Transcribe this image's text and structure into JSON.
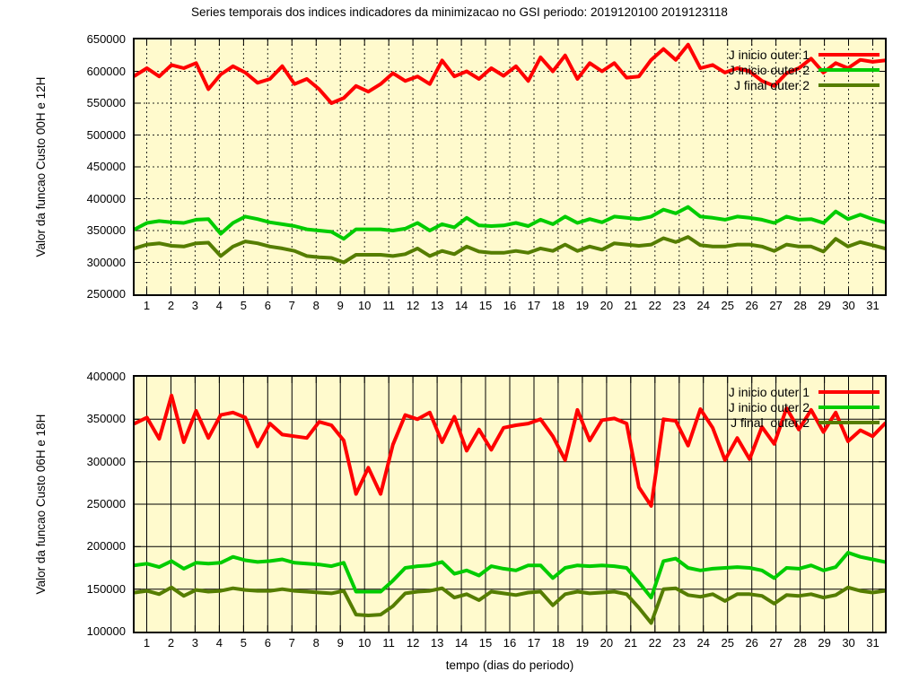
{
  "title": "Series temporais dos indices indicadores da minimizacao no GSI periodo: 2019120100 2019123118",
  "chart_data": [
    {
      "name": "custo-00h-12h",
      "type": "line",
      "ylabel": "Valor da funcao Custo 00H e 12H",
      "grid": "dotted",
      "plot_bg": "#FFFACD",
      "legend_position": "top-right",
      "xlim": [
        0.5,
        31.5
      ],
      "ylim": [
        250000,
        650000
      ],
      "ytick_step": 50000,
      "xticks": [
        1,
        2,
        3,
        4,
        5,
        6,
        7,
        8,
        9,
        10,
        11,
        12,
        13,
        14,
        15,
        16,
        17,
        18,
        19,
        20,
        21,
        22,
        23,
        24,
        25,
        26,
        27,
        28,
        29,
        30,
        31
      ],
      "series": [
        {
          "name": "J inicio outer 1",
          "color": "#ff0000",
          "values": [
            593000,
            605000,
            592000,
            610000,
            605000,
            613000,
            572000,
            595000,
            608000,
            598000,
            582000,
            588000,
            608000,
            580000,
            588000,
            572000,
            550000,
            558000,
            577000,
            568000,
            580000,
            597000,
            585000,
            592000,
            580000,
            617000,
            592000,
            600000,
            588000,
            605000,
            593000,
            608000,
            585000,
            622000,
            600000,
            625000,
            588000,
            613000,
            600000,
            613000,
            590000,
            592000,
            618000,
            635000,
            618000,
            642000,
            605000,
            610000,
            598000,
            605000,
            600000,
            585000,
            577000,
            597000,
            605000,
            620000,
            598000,
            613000,
            605000,
            618000,
            615000,
            617000
          ]
        },
        {
          "name": "J inicio outer 2",
          "color": "#00cc00",
          "values": [
            352000,
            362000,
            365000,
            363000,
            362000,
            367000,
            368000,
            345000,
            362000,
            372000,
            368000,
            363000,
            360000,
            357000,
            352000,
            350000,
            348000,
            337000,
            352000,
            352000,
            352000,
            350000,
            353000,
            362000,
            350000,
            360000,
            355000,
            370000,
            358000,
            357000,
            358000,
            362000,
            357000,
            367000,
            360000,
            372000,
            362000,
            368000,
            363000,
            372000,
            370000,
            368000,
            372000,
            383000,
            377000,
            387000,
            372000,
            370000,
            367000,
            372000,
            370000,
            367000,
            362000,
            372000,
            367000,
            368000,
            362000,
            380000,
            368000,
            375000,
            368000,
            363000
          ]
        },
        {
          "name": "J final outer 2",
          "color": "#557d00",
          "values": [
            322000,
            328000,
            330000,
            326000,
            325000,
            330000,
            331000,
            310000,
            325000,
            333000,
            330000,
            325000,
            322000,
            318000,
            310000,
            308000,
            307000,
            300000,
            312000,
            312000,
            312000,
            310000,
            313000,
            322000,
            310000,
            318000,
            313000,
            325000,
            317000,
            315000,
            315000,
            318000,
            315000,
            322000,
            318000,
            328000,
            318000,
            325000,
            320000,
            330000,
            328000,
            326000,
            328000,
            338000,
            332000,
            340000,
            327000,
            325000,
            325000,
            328000,
            328000,
            325000,
            318000,
            328000,
            325000,
            325000,
            317000,
            337000,
            325000,
            332000,
            327000,
            322000
          ]
        }
      ]
    },
    {
      "name": "custo-06h-18h",
      "type": "line",
      "ylabel": "Valor da funcao Custo 06H e 18H",
      "xlabel": "tempo (dias do periodo)",
      "grid": "solid",
      "plot_bg": "#FFFACD",
      "legend_position": "top-right",
      "xlim": [
        0.5,
        31.5
      ],
      "ylim": [
        100000,
        400000
      ],
      "ytick_step": 50000,
      "xticks": [
        1,
        2,
        3,
        4,
        5,
        6,
        7,
        8,
        9,
        10,
        11,
        12,
        13,
        14,
        15,
        16,
        17,
        18,
        19,
        20,
        21,
        22,
        23,
        24,
        25,
        26,
        27,
        28,
        29,
        30,
        31
      ],
      "series": [
        {
          "name": "J inicio outer 1",
          "color": "#ff0000",
          "values": [
            345000,
            352000,
            327000,
            378000,
            323000,
            360000,
            328000,
            355000,
            358000,
            352000,
            318000,
            345000,
            332000,
            330000,
            328000,
            347000,
            343000,
            325000,
            262000,
            293000,
            262000,
            320000,
            355000,
            350000,
            358000,
            323000,
            353000,
            313000,
            338000,
            314000,
            340000,
            343000,
            345000,
            350000,
            330000,
            302000,
            361000,
            325000,
            349000,
            351000,
            345000,
            270000,
            248000,
            350000,
            348000,
            319000,
            362000,
            340000,
            302000,
            328000,
            303000,
            341000,
            321000,
            363000,
            338000,
            361000,
            335000,
            358000,
            324000,
            337000,
            330000,
            345000
          ]
        },
        {
          "name": "J inicio outer 2",
          "color": "#00cc00",
          "values": [
            178000,
            180000,
            176000,
            183000,
            174000,
            181000,
            180000,
            181000,
            188000,
            184000,
            182000,
            183000,
            185000,
            181000,
            180000,
            179000,
            177000,
            181000,
            147000,
            147000,
            147000,
            160000,
            175000,
            177000,
            178000,
            182000,
            168000,
            172000,
            166000,
            177000,
            174000,
            172000,
            178000,
            178000,
            163000,
            175000,
            178000,
            177000,
            178000,
            177000,
            175000,
            158000,
            140000,
            183000,
            186000,
            175000,
            172000,
            174000,
            175000,
            176000,
            175000,
            172000,
            163000,
            175000,
            174000,
            178000,
            172000,
            176000,
            193000,
            188000,
            185000,
            182000
          ]
        },
        {
          "name": "J final  outer 2",
          "color": "#557d00",
          "values": [
            146000,
            148000,
            144000,
            152000,
            142000,
            149000,
            147000,
            148000,
            151000,
            149000,
            148000,
            148000,
            150000,
            148000,
            147000,
            146000,
            145000,
            148000,
            120000,
            119000,
            120000,
            130000,
            145000,
            147000,
            148000,
            151000,
            140000,
            144000,
            137000,
            147000,
            145000,
            143000,
            146000,
            147000,
            131000,
            144000,
            147000,
            145000,
            146000,
            147000,
            144000,
            128000,
            110000,
            150000,
            151000,
            143000,
            141000,
            144000,
            136000,
            144000,
            144000,
            142000,
            133000,
            143000,
            142000,
            144000,
            140000,
            143000,
            152000,
            148000,
            146000,
            148000
          ]
        }
      ]
    }
  ]
}
